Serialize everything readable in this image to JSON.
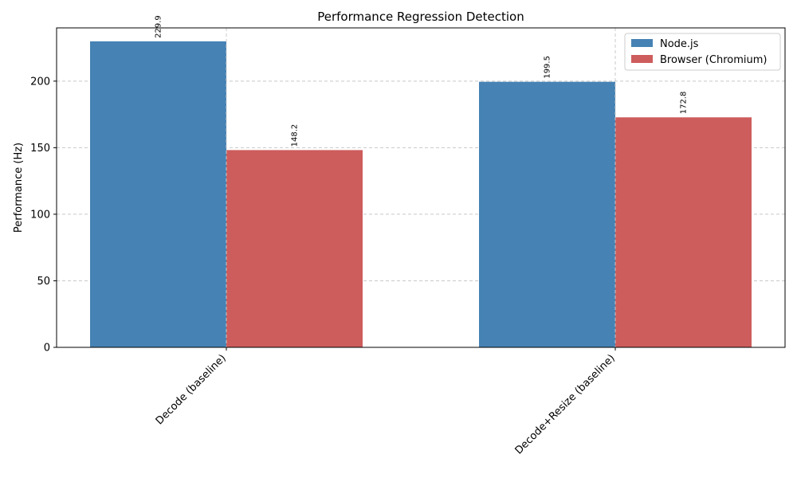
{
  "chart_data": {
    "type": "bar",
    "title": "Performance Regression Detection",
    "xlabel": "",
    "ylabel": "Performance (Hz)",
    "categories": [
      "Decode (baseline)",
      "Decode+Resize (baseline)"
    ],
    "series": [
      {
        "name": "Node.js",
        "values": [
          229.9,
          199.5
        ],
        "color": "#4682b4"
      },
      {
        "name": "Browser (Chromium)",
        "values": [
          148.2,
          172.8
        ],
        "color": "#cd5c5c"
      }
    ],
    "ylim": [
      0,
      240
    ],
    "yticks": [
      0,
      50,
      100,
      150,
      200
    ],
    "grid": true,
    "legend_position": "top-right"
  }
}
